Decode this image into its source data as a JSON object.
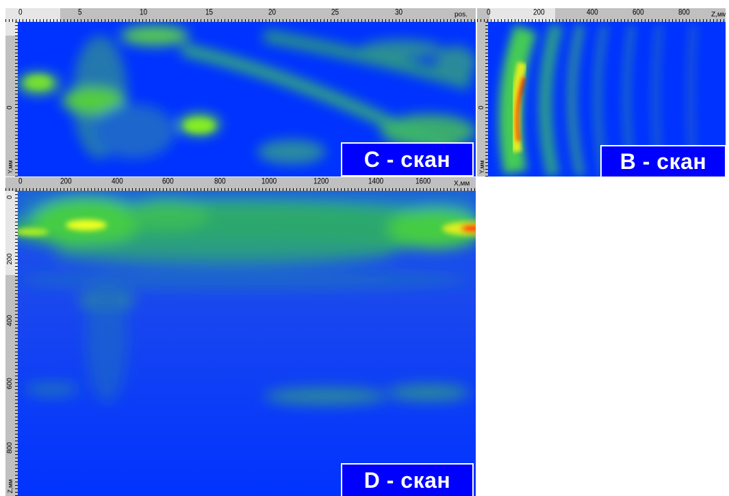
{
  "cscan": {
    "label": "C - скан",
    "x_ticks": [
      "0",
      "5",
      "10",
      "15",
      "20",
      "25",
      "30"
    ],
    "x_unit": "pos.",
    "y_ticks": [
      "0"
    ],
    "y_unit": "Y,мм"
  },
  "bscan": {
    "label": "B - скан",
    "x_ticks": [
      "0",
      "200",
      "400",
      "600",
      "800"
    ],
    "x_unit": "Z,мм",
    "y_ticks": [
      "0"
    ],
    "y_unit": "Y,мм"
  },
  "dscan": {
    "label": "D - скан",
    "x_ticks": [
      "0",
      "200",
      "400",
      "600",
      "800",
      "1000",
      "1200",
      "1400",
      "1600"
    ],
    "x_unit": "X,мм",
    "y_ticks": [
      "0",
      "200",
      "400",
      "600",
      "800"
    ],
    "y_unit": "Z,мм"
  },
  "colors": {
    "background": "#0000ff",
    "low": "#1a4fe0",
    "mid": "#2cc06a",
    "high": "#e8ff20",
    "peak": "#ff1a00"
  }
}
